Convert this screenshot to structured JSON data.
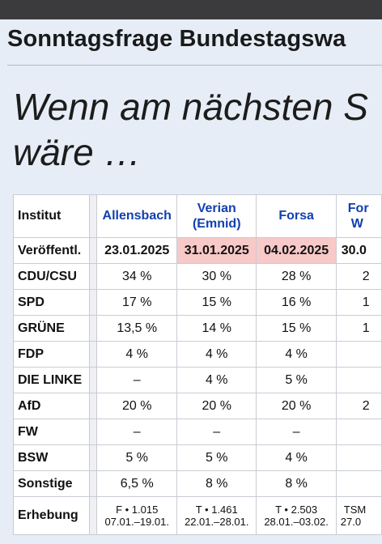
{
  "page": {
    "title": "Sonntagsfrage Bundestagswa",
    "headline_line1": "Wenn am nächsten S",
    "headline_line2": "wäre …"
  },
  "table": {
    "corner_label": "Institut",
    "institutes": [
      {
        "name": "Allensbach",
        "name2": ""
      },
      {
        "name": "Verian",
        "name2": "(Emnid)"
      },
      {
        "name": "Forsa",
        "name2": ""
      },
      {
        "name": "For",
        "name2": "W"
      }
    ],
    "published": {
      "label": "Veröffentl.",
      "dates": [
        "23.01.2025",
        "31.01.2025",
        "04.02.2025",
        "30.0"
      ],
      "highlighted": [
        false,
        true,
        true,
        false
      ]
    },
    "rows": [
      {
        "party": "CDU/CSU",
        "values": [
          "34 %",
          "30 %",
          "28 %",
          "2"
        ]
      },
      {
        "party": "SPD",
        "values": [
          "17 %",
          "15 %",
          "16 %",
          "1"
        ]
      },
      {
        "party": "GRÜNE",
        "values": [
          "13,5 %",
          "14 %",
          "15 %",
          "1"
        ]
      },
      {
        "party": "FDP",
        "values": [
          "4 %",
          "4 %",
          "4 %",
          ""
        ]
      },
      {
        "party": "DIE LINKE",
        "values": [
          "–",
          "4 %",
          "5 %",
          ""
        ]
      },
      {
        "party": "AfD",
        "values": [
          "20 %",
          "20 %",
          "20 %",
          "2"
        ]
      },
      {
        "party": "FW",
        "values": [
          "–",
          "–",
          "–",
          ""
        ]
      },
      {
        "party": "BSW",
        "values": [
          "5 %",
          "5 %",
          "4 %",
          ""
        ]
      },
      {
        "party": "Sonstige",
        "values": [
          "6,5 %",
          "8 %",
          "8 %",
          ""
        ]
      }
    ],
    "survey": {
      "label": "Erhebung",
      "cells": [
        {
          "line1": "F • 1.015",
          "line2": "07.01.–19.01."
        },
        {
          "line1": "T • 1.461",
          "line2": "22.01.–28.01."
        },
        {
          "line1": "T • 2.503",
          "line2": "28.01.–03.02."
        },
        {
          "line1": "TSM",
          "line2": "27.0"
        }
      ]
    }
  },
  "colors": {
    "background": "#e7edf6",
    "link": "#1140b0",
    "highlight": "#f8c9c9",
    "topbar": "#3b3b3d"
  }
}
